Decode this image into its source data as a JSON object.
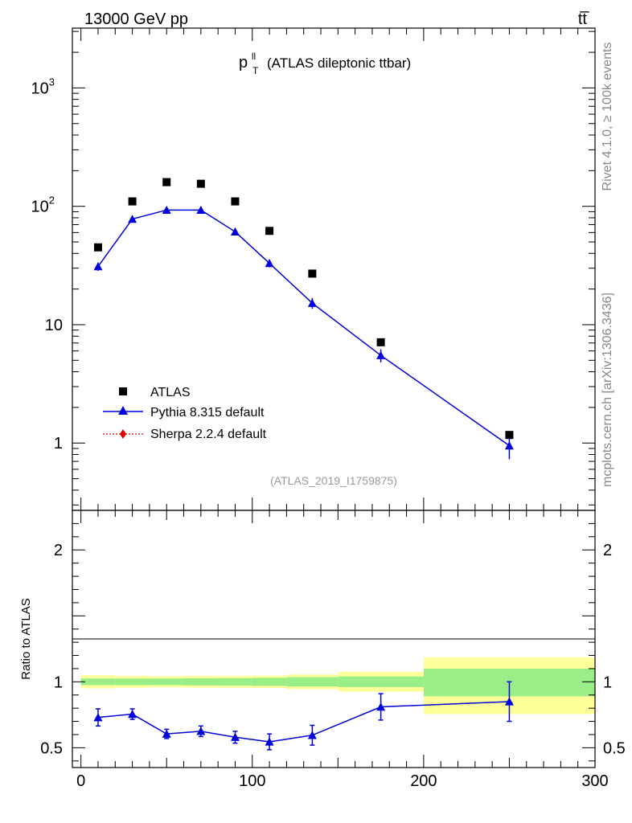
{
  "header": {
    "left": "13000 GeV pp",
    "right": "tt̅"
  },
  "side_labels": {
    "rivet": "Rivet 4.1.0, ≥ 100k events",
    "mcplots": "mcplots.cern.ch [arXiv:1306.3436]"
  },
  "chart_data": [
    {
      "panel": "main",
      "type": "scatter",
      "title_main": "p",
      "title_sup": "ll",
      "title_sub": "T",
      "title_rest": "(ATLAS dileptonic ttbar)",
      "analysis_id": "(ATLAS_2019_I1759875)",
      "yscale": "log",
      "xlim": [
        -5,
        300
      ],
      "ylim": [
        0.27,
        3200
      ],
      "y_ticks": [
        {
          "value": 1,
          "label": "1"
        },
        {
          "value": 10,
          "label": "10"
        },
        {
          "value": 100,
          "label": "10",
          "exp": "2"
        },
        {
          "value": 1000,
          "label": "10",
          "exp": "3"
        }
      ],
      "legend": {
        "placement": "lower-left",
        "entries": [
          {
            "label": "ATLAS",
            "marker": "square",
            "color": "#000000"
          },
          {
            "label": "Pythia 8.315 default",
            "marker": "triangle",
            "color": "#0000dd"
          },
          {
            "label": "Sherpa 2.2.4 default",
            "marker": "diamond",
            "color": "#dd0000"
          }
        ]
      },
      "bins": [
        [
          0,
          20
        ],
        [
          20,
          40
        ],
        [
          40,
          60
        ],
        [
          60,
          80
        ],
        [
          80,
          100
        ],
        [
          100,
          120
        ],
        [
          120,
          150
        ],
        [
          150,
          200
        ],
        [
          200,
          300
        ]
      ],
      "series": [
        {
          "name": "ATLAS",
          "x": [
            10,
            30,
            50,
            70,
            90,
            110,
            135,
            175,
            250
          ],
          "y": [
            45,
            110,
            160,
            155,
            110,
            62,
            27,
            7.1,
            1.17
          ]
        },
        {
          "name": "Pythia 8.315 default",
          "x": [
            10,
            30,
            50,
            70,
            90,
            110,
            135,
            175,
            250
          ],
          "y": [
            31,
            78,
            93,
            93,
            61,
            33,
            15.2,
            5.5,
            0.95
          ],
          "yerr": [
            2.5,
            3.5,
            4,
            4,
            4,
            2.5,
            1.6,
            0.7,
            0.22
          ]
        }
      ]
    },
    {
      "panel": "ratio",
      "type": "line",
      "ylabel": "Ratio to ATLAS",
      "xlim": [
        -5,
        300
      ],
      "ylim": [
        0.35,
        2.3
      ],
      "x_ticks": [
        0,
        100,
        200,
        300
      ],
      "y_ticks": [
        0.5,
        1,
        2
      ],
      "bands": [
        {
          "x0": 0,
          "x1": 20,
          "inner": [
            0.975,
            1.025
          ],
          "outer": [
            0.95,
            1.05
          ]
        },
        {
          "x0": 20,
          "x1": 40,
          "inner": [
            0.975,
            1.025
          ],
          "outer": [
            0.955,
            1.045
          ]
        },
        {
          "x0": 40,
          "x1": 60,
          "inner": [
            0.975,
            1.025
          ],
          "outer": [
            0.958,
            1.042
          ]
        },
        {
          "x0": 60,
          "x1": 80,
          "inner": [
            0.973,
            1.027
          ],
          "outer": [
            0.955,
            1.045
          ]
        },
        {
          "x0": 80,
          "x1": 100,
          "inner": [
            0.972,
            1.028
          ],
          "outer": [
            0.955,
            1.045
          ]
        },
        {
          "x0": 100,
          "x1": 120,
          "inner": [
            0.97,
            1.03
          ],
          "outer": [
            0.953,
            1.047
          ]
        },
        {
          "x0": 120,
          "x1": 150,
          "inner": [
            0.965,
            1.035
          ],
          "outer": [
            0.945,
            1.055
          ]
        },
        {
          "x0": 150,
          "x1": 200,
          "inner": [
            0.96,
            1.04
          ],
          "outer": [
            0.925,
            1.075
          ]
        },
        {
          "x0": 200,
          "x1": 300,
          "inner": [
            0.89,
            1.1
          ],
          "outer": [
            0.755,
            1.185
          ]
        }
      ],
      "series": [
        {
          "name": "Pythia 8.315 default",
          "x": [
            10,
            30,
            50,
            70,
            90,
            110,
            135,
            175,
            250
          ],
          "y": [
            0.73,
            0.755,
            0.605,
            0.625,
            0.58,
            0.545,
            0.595,
            0.81,
            0.85
          ],
          "yerr": [
            0.065,
            0.04,
            0.035,
            0.04,
            0.045,
            0.06,
            0.075,
            0.1,
            0.15
          ]
        }
      ]
    }
  ]
}
